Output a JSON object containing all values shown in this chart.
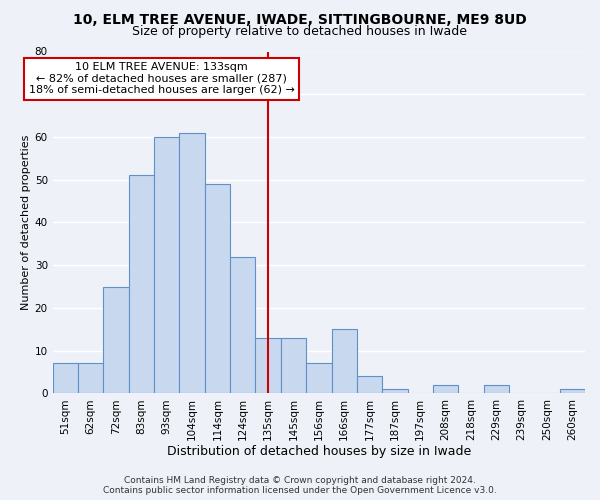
{
  "title": "10, ELM TREE AVENUE, IWADE, SITTINGBOURNE, ME9 8UD",
  "subtitle": "Size of property relative to detached houses in Iwade",
  "xlabel": "Distribution of detached houses by size in Iwade",
  "ylabel": "Number of detached properties",
  "bar_labels": [
    "51sqm",
    "62sqm",
    "72sqm",
    "83sqm",
    "93sqm",
    "104sqm",
    "114sqm",
    "124sqm",
    "135sqm",
    "145sqm",
    "156sqm",
    "166sqm",
    "177sqm",
    "187sqm",
    "197sqm",
    "208sqm",
    "218sqm",
    "229sqm",
    "239sqm",
    "250sqm",
    "260sqm"
  ],
  "bar_values": [
    7,
    7,
    25,
    51,
    60,
    61,
    49,
    32,
    13,
    13,
    7,
    15,
    4,
    1,
    0,
    2,
    0,
    2,
    0,
    0,
    1
  ],
  "bar_color": "#c8d8ee",
  "bar_edge_color": "#6090c8",
  "vline_x_idx": 8,
  "vline_color": "#cc0000",
  "ann_line1": "10 ELM TREE AVENUE: 133sqm",
  "ann_line2": "← 82% of detached houses are smaller (287)",
  "ann_line3": "18% of semi-detached houses are larger (62) →",
  "annotation_box_facecolor": "#ffffff",
  "annotation_box_edgecolor": "#cc0000",
  "ylim": [
    0,
    80
  ],
  "yticks": [
    0,
    10,
    20,
    30,
    40,
    50,
    60,
    70,
    80
  ],
  "footer_line1": "Contains HM Land Registry data © Crown copyright and database right 2024.",
  "footer_line2": "Contains public sector information licensed under the Open Government Licence v3.0.",
  "background_color": "#eef2f8",
  "grid_color": "#ffffff",
  "title_fontsize": 10,
  "subtitle_fontsize": 9,
  "xlabel_fontsize": 9,
  "ylabel_fontsize": 8,
  "tick_fontsize": 7.5,
  "annotation_fontsize": 8,
  "footer_fontsize": 6.5
}
